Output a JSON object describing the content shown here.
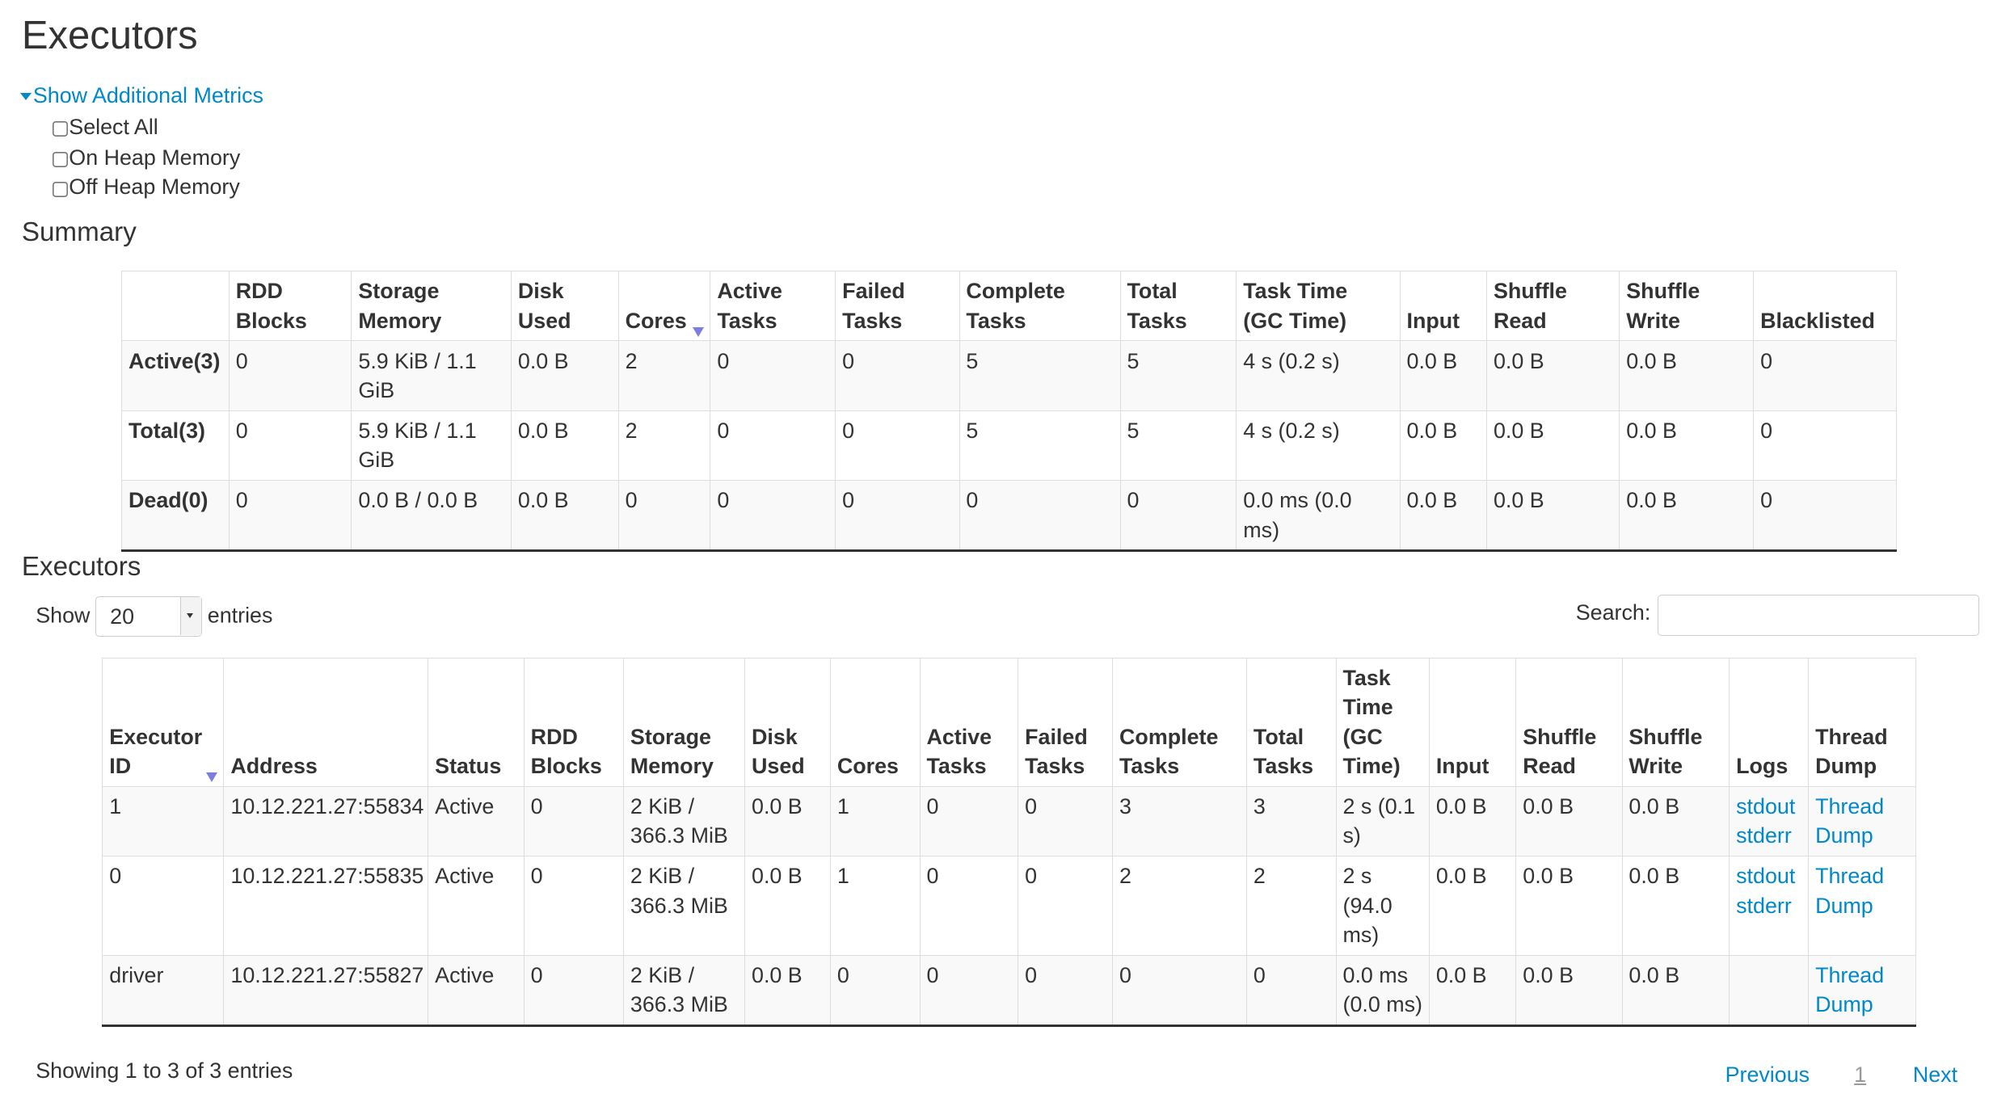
{
  "title": "Executors",
  "toggle_label": "Show Additional Metrics",
  "checkboxes": [
    "Select All",
    "On Heap Memory",
    "Off Heap Memory"
  ],
  "summary_title": "Summary",
  "summary": {
    "headers": [
      "",
      "RDD Blocks",
      "Storage Memory",
      "Disk Used",
      "Cores",
      "Active Tasks",
      "Failed Tasks",
      "Complete Tasks",
      "Total Tasks",
      "Task Time (GC Time)",
      "Input",
      "Shuffle Read",
      "Shuffle Write",
      "Blacklisted"
    ],
    "rows": [
      [
        "Active(3)",
        "0",
        "5.9 KiB / 1.1 GiB",
        "0.0 B",
        "2",
        "0",
        "0",
        "5",
        "5",
        "4 s (0.2 s)",
        "0.0 B",
        "0.0 B",
        "0.0 B",
        "0"
      ],
      [
        "Total(3)",
        "0",
        "5.9 KiB / 1.1 GiB",
        "0.0 B",
        "2",
        "0",
        "0",
        "5",
        "5",
        "4 s (0.2 s)",
        "0.0 B",
        "0.0 B",
        "0.0 B",
        "0"
      ],
      [
        "Dead(0)",
        "0",
        "0.0 B / 0.0 B",
        "0.0 B",
        "0",
        "0",
        "0",
        "0",
        "0",
        "0.0 ms (0.0 ms)",
        "0.0 B",
        "0.0 B",
        "0.0 B",
        "0"
      ]
    ]
  },
  "executors_title": "Executors",
  "show_label": "Show",
  "entries_value": "20",
  "entries_label": "entries",
  "search_label": "Search:",
  "search_value": "",
  "executors": {
    "headers": [
      "Executor ID",
      "Address",
      "Status",
      "RDD Blocks",
      "Storage Memory",
      "Disk Used",
      "Cores",
      "Active Tasks",
      "Failed Tasks",
      "Complete Tasks",
      "Total Tasks",
      "Task Time (GC Time)",
      "Input",
      "Shuffle Read",
      "Shuffle Write",
      "Logs",
      "Thread Dump"
    ],
    "rows": [
      {
        "cells": [
          "1",
          "10.12.221.27:55834",
          "Active",
          "0",
          "2 KiB / 366.3 MiB",
          "0.0 B",
          "1",
          "0",
          "0",
          "3",
          "3",
          "2 s (0.1 s)",
          "0.0 B",
          "0.0 B",
          "0.0 B"
        ],
        "logs": [
          "stdout",
          "stderr"
        ],
        "dump": "Thread Dump"
      },
      {
        "cells": [
          "0",
          "10.12.221.27:55835",
          "Active",
          "0",
          "2 KiB / 366.3 MiB",
          "0.0 B",
          "1",
          "0",
          "0",
          "2",
          "2",
          "2 s (94.0 ms)",
          "0.0 B",
          "0.0 B",
          "0.0 B"
        ],
        "logs": [
          "stdout",
          "stderr"
        ],
        "dump": "Thread Dump"
      },
      {
        "cells": [
          "driver",
          "10.12.221.27:55827",
          "Active",
          "0",
          "2 KiB / 366.3 MiB",
          "0.0 B",
          "0",
          "0",
          "0",
          "0",
          "0",
          "0.0 ms (0.0 ms)",
          "0.0 B",
          "0.0 B",
          "0.0 B"
        ],
        "logs": [],
        "dump": "Thread Dump"
      }
    ]
  },
  "info": "Showing 1 to 3 of 3 entries",
  "pager": {
    "previous": "Previous",
    "page": "1",
    "next": "Next"
  },
  "colors": {
    "link": "#0088cc",
    "sort_arrow": "#7e7ee0"
  }
}
